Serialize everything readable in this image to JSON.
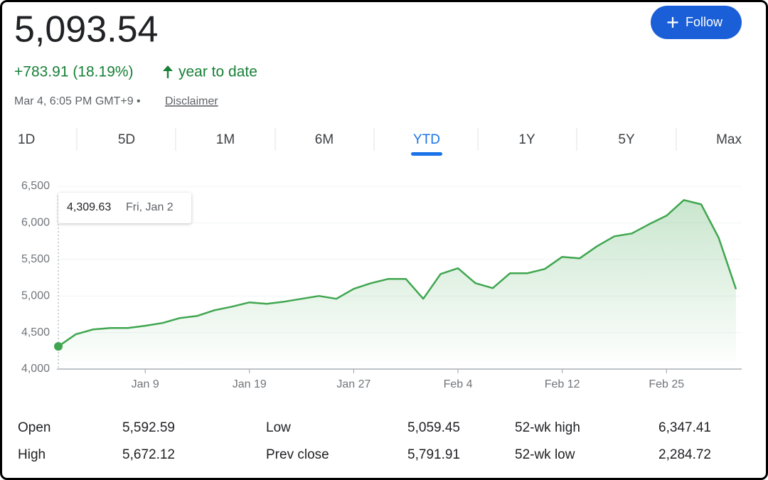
{
  "header": {
    "price": "5,093.54",
    "change": "+783.91 (18.19%)",
    "period": "year to date",
    "timestamp": "Mar 4, 6:05 PM GMT+9 •",
    "disclaimer": "Disclaimer",
    "follow": "Follow"
  },
  "tabs": {
    "items": [
      "1D",
      "5D",
      "1M",
      "6M",
      "YTD",
      "1Y",
      "5Y",
      "Max"
    ],
    "selected": "YTD"
  },
  "tooltip": {
    "value": "4,309.63",
    "date": "Fri, Jan 2"
  },
  "chart_data": {
    "type": "line",
    "color": "#3fa64f",
    "categories": [
      null,
      null,
      null,
      null,
      null,
      "Jan 9",
      null,
      null,
      null,
      null,
      null,
      "Jan 19",
      null,
      null,
      null,
      null,
      null,
      "Jan 27",
      null,
      null,
      null,
      null,
      null,
      "Feb 4",
      null,
      null,
      null,
      null,
      null,
      "Feb 12",
      null,
      null,
      null,
      null,
      null,
      "Feb 25",
      null,
      null,
      null,
      null
    ],
    "values": [
      4309.63,
      4475,
      4543,
      4562,
      4562,
      4592,
      4630,
      4698,
      4728,
      4805,
      4854,
      4912,
      4893,
      4922,
      4961,
      5000,
      4961,
      5097,
      5175,
      5233,
      5233,
      4961,
      5301,
      5379,
      5175,
      5107,
      5311,
      5311,
      5370,
      5535,
      5515,
      5680,
      5816,
      5855,
      5982,
      6098,
      6312,
      6253,
      5797,
      5093.54
    ],
    "ylim": [
      4000,
      6500
    ],
    "yticks": [
      {
        "value": 4000,
        "label": "4,000"
      },
      {
        "value": 4500,
        "label": "4,500"
      },
      {
        "value": 5000,
        "label": "5,000"
      },
      {
        "value": 5500,
        "label": "5,500"
      },
      {
        "value": 6000,
        "label": "6,000"
      },
      {
        "value": 6500,
        "label": "6,500"
      }
    ],
    "grid": true
  },
  "stats": {
    "rows": [
      [
        "Open",
        "5,592.59",
        "Low",
        "5,059.45",
        "52-wk high",
        "6,347.41"
      ],
      [
        "High",
        "5,672.12",
        "Prev close",
        "5,791.91",
        "52-wk low",
        "2,284.72"
      ]
    ]
  }
}
